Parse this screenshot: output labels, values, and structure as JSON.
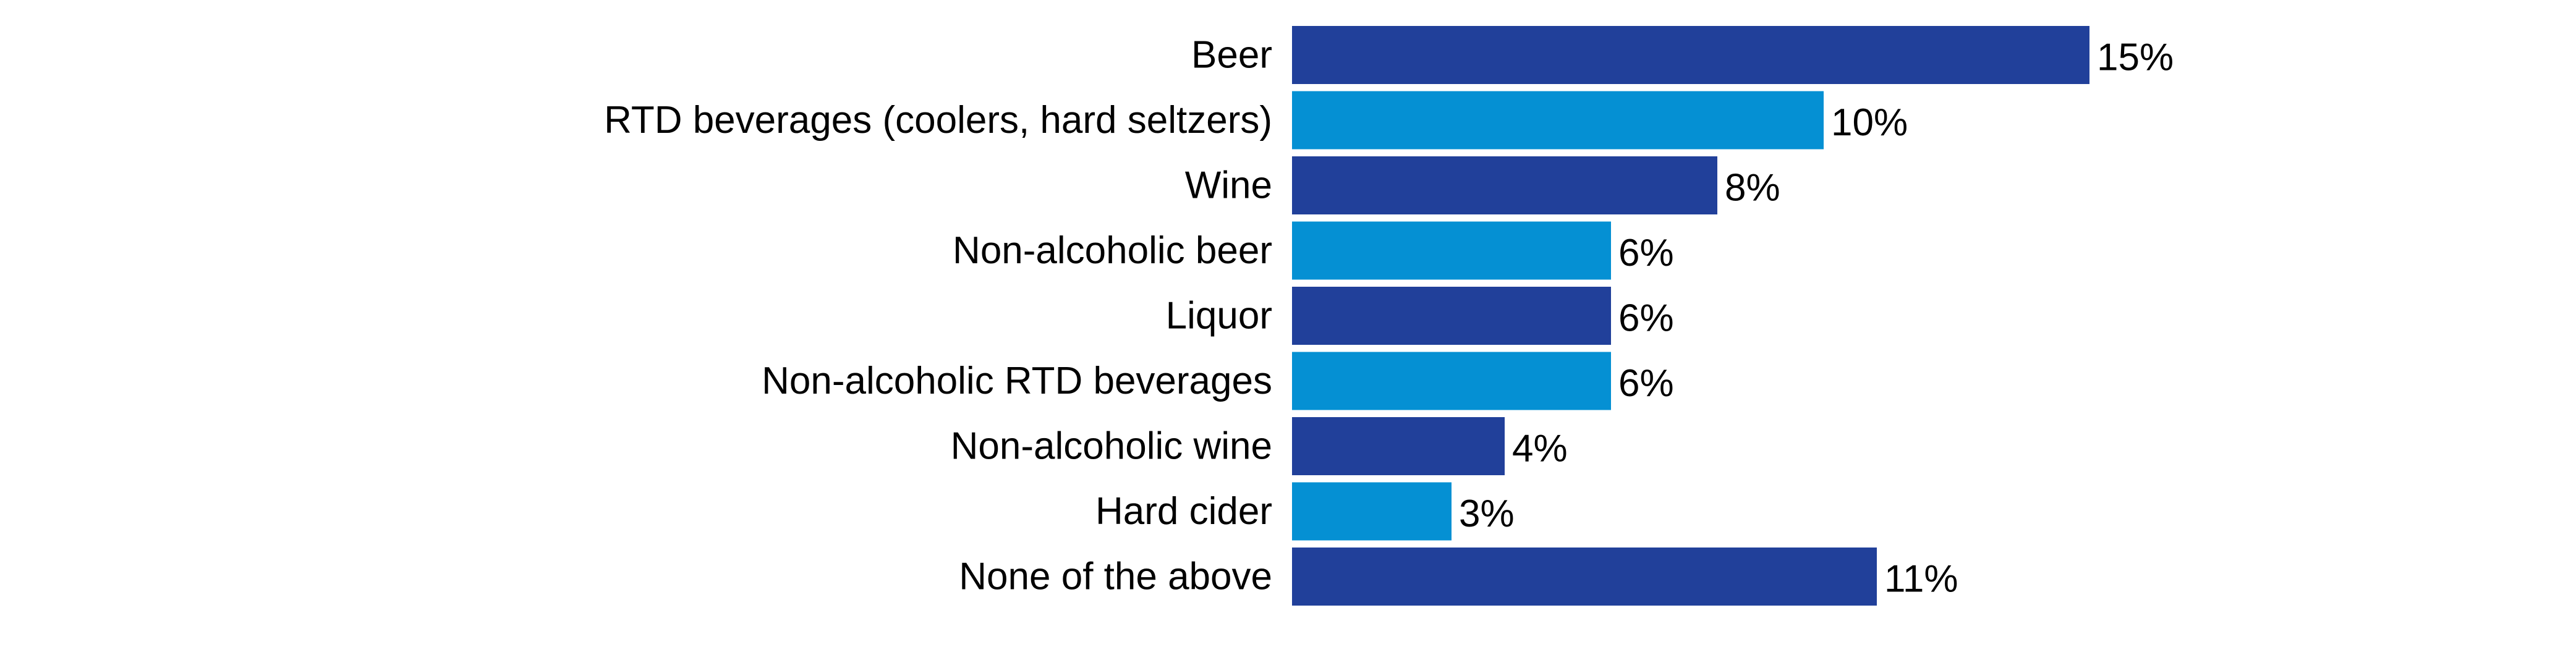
{
  "chart_data": {
    "type": "bar",
    "orientation": "horizontal",
    "categories": [
      "Beer",
      "RTD beverages (coolers, hard seltzers)",
      "Wine",
      "Non-alcoholic beer",
      "Liquor",
      "Non-alcoholic RTD beverages",
      "Non-alcoholic wine",
      "Hard cider",
      "None of the above"
    ],
    "values": [
      15,
      10,
      8,
      6,
      6,
      6,
      4,
      3,
      11
    ],
    "value_labels": [
      "15%",
      "10%",
      "8%",
      "6%",
      "6%",
      "6%",
      "4%",
      "3%",
      "11%"
    ],
    "bar_colors": [
      "#21409a",
      "#0590d3",
      "#21409a",
      "#0590d3",
      "#21409a",
      "#0590d3",
      "#21409a",
      "#0590d3",
      "#21409a"
    ],
    "title": "",
    "xlabel": "",
    "ylabel": "",
    "xlim": [
      0,
      15
    ],
    "grid": false,
    "legend": false
  }
}
